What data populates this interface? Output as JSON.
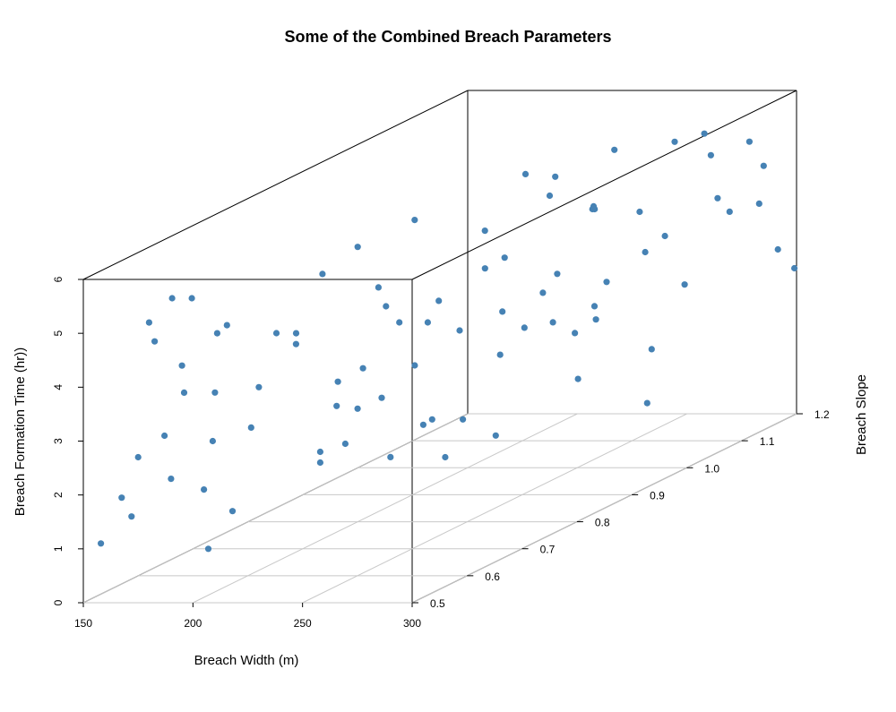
{
  "chart_data": {
    "type": "scatter",
    "title": "Some of the Combined Breach Parameters",
    "xlabel": "Breach Width (m)",
    "ylabel": "Breach Slope",
    "zlabel": "Breach Formation Time (hr))",
    "xlim": [
      150,
      300
    ],
    "ylim": [
      0.5,
      1.2
    ],
    "zlim": [
      0,
      6
    ],
    "x_ticks": [
      "150",
      "200",
      "250",
      "300"
    ],
    "y_ticks": [
      "0.5",
      "0.6",
      "0.7",
      "0.8",
      "0.9",
      "1.0",
      "1.1",
      "1.2"
    ],
    "z_ticks": [
      "0",
      "1",
      "2",
      "3",
      "4",
      "5",
      "6"
    ],
    "point_color": "#4682b4",
    "box": true,
    "grid_on_floor": true,
    "points": [
      [
        158,
        0.5,
        1.1
      ],
      [
        165,
        0.51,
        1.9
      ],
      [
        170,
        0.52,
        2.6
      ],
      [
        172,
        0.5,
        1.6
      ],
      [
        175,
        0.53,
        4.7
      ],
      [
        178,
        0.55,
        5.4
      ],
      [
        180,
        0.5,
        5.2
      ],
      [
        182,
        0.52,
        3.0
      ],
      [
        185,
        0.54,
        4.2
      ],
      [
        186,
        0.6,
        4.5
      ],
      [
        190,
        0.5,
        2.3
      ],
      [
        192,
        0.53,
        5.5
      ],
      [
        194,
        0.56,
        2.7
      ],
      [
        196,
        0.5,
        3.9
      ],
      [
        198,
        0.58,
        1.3
      ],
      [
        200,
        0.52,
        2.0
      ],
      [
        203,
        0.55,
        4.9
      ],
      [
        205,
        0.6,
        3.5
      ],
      [
        207,
        0.5,
        1.0
      ],
      [
        209,
        0.57,
        2.9
      ],
      [
        212,
        0.64,
        4.3
      ],
      [
        214,
        0.68,
        5.2
      ],
      [
        216,
        0.7,
        3.1
      ],
      [
        218,
        0.66,
        1.8
      ],
      [
        220,
        0.72,
        2.5
      ],
      [
        222,
        0.75,
        4.6
      ],
      [
        224,
        0.78,
        3.8
      ],
      [
        226,
        0.8,
        5.6
      ],
      [
        228,
        0.62,
        2.2
      ],
      [
        230,
        0.74,
        1.5
      ],
      [
        232,
        0.82,
        4.0
      ],
      [
        234,
        0.85,
        3.3
      ],
      [
        236,
        0.7,
        2.8
      ],
      [
        238,
        0.88,
        5.0
      ],
      [
        240,
        0.65,
        3.6
      ],
      [
        242,
        0.9,
        4.4
      ],
      [
        244,
        0.76,
        2.1
      ],
      [
        246,
        0.92,
        3.0
      ],
      [
        248,
        0.8,
        1.9
      ],
      [
        250,
        0.95,
        5.3
      ],
      [
        252,
        0.72,
        4.1
      ],
      [
        254,
        0.98,
        2.6
      ],
      [
        256,
        0.84,
        3.7
      ],
      [
        258,
        1.0,
        4.8
      ],
      [
        260,
        0.68,
        2.4
      ],
      [
        262,
        1.02,
        5.8
      ],
      [
        264,
        0.9,
        3.2
      ],
      [
        266,
        1.05,
        4.5
      ],
      [
        268,
        0.78,
        1.7
      ],
      [
        270,
        1.08,
        3.9
      ],
      [
        272,
        0.94,
        5.1
      ],
      [
        274,
        1.1,
        2.9
      ],
      [
        276,
        0.86,
        4.3
      ],
      [
        278,
        1.12,
        5.6
      ],
      [
        280,
        0.74,
        3.4
      ],
      [
        282,
        1.15,
        4.0
      ],
      [
        284,
        1.0,
        2.2
      ],
      [
        286,
        1.17,
        5.2
      ],
      [
        288,
        0.88,
        3.6
      ],
      [
        290,
        1.18,
        4.7
      ],
      [
        292,
        0.96,
        1.4
      ],
      [
        294,
        1.19,
        3.1
      ],
      [
        296,
        1.06,
        5.5
      ],
      [
        298,
        1.14,
        4.2
      ],
      [
        299,
        1.2,
        2.7
      ],
      [
        180,
        0.62,
        3.3
      ],
      [
        188,
        0.7,
        4.0
      ],
      [
        195,
        0.82,
        5.0
      ],
      [
        201,
        0.9,
        2.4
      ],
      [
        208,
        1.0,
        3.7
      ],
      [
        215,
        1.1,
        4.9
      ],
      [
        221,
        1.15,
        2.0
      ],
      [
        227,
        0.58,
        4.4
      ],
      [
        233,
        0.63,
        3.0
      ],
      [
        239,
        0.95,
        5.7
      ],
      [
        245,
        1.05,
        4.6
      ],
      [
        251,
        1.12,
        3.4
      ],
      [
        257,
        0.55,
        2.7
      ],
      [
        263,
        0.6,
        5.0
      ],
      [
        269,
        1.18,
        4.1
      ],
      [
        275,
        0.66,
        1.9
      ],
      [
        281,
        0.93,
        3.8
      ],
      [
        287,
        1.03,
        5.9
      ],
      [
        293,
        0.83,
        2.5
      ],
      [
        297,
        0.75,
        4.5
      ]
    ]
  }
}
